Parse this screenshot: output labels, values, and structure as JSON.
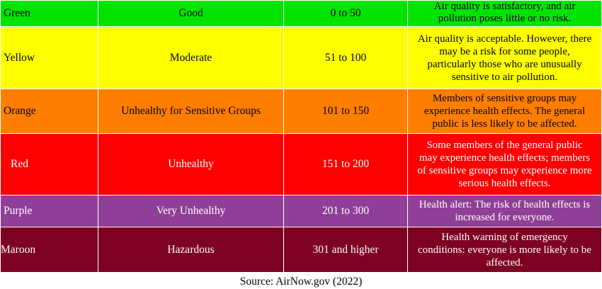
{
  "table": {
    "rows": [
      {
        "color": "Green",
        "level": "Good",
        "range": "0 to 50",
        "desc_lines": [
          "Air quality is satisfactory, and air",
          "pollution poses little or no risk."
        ]
      },
      {
        "color": "Yellow",
        "level": "Moderate",
        "range": "51 to 100",
        "desc_lines": [
          "Air quality is acceptable. However, there",
          "may be a risk for some people,",
          "particularly those who are unusually",
          "sensitive to air pollution."
        ]
      },
      {
        "color": "Orange",
        "level": "Unhealthy for Sensitive Groups",
        "range": "101 to 150",
        "desc_lines": [
          "Members of sensitive groups may",
          "experience health effects. The general",
          "public is less likely to be affected."
        ]
      },
      {
        "color": "Red",
        "level": "Unhealthy",
        "range": "151 to 200",
        "desc_lines": [
          "Some members of the general public",
          "may experience health effects; members",
          "of sensitive groups may experience more",
          "serious health effects."
        ]
      },
      {
        "color": "Purple",
        "level": "Very Unhealthy",
        "range": "201 to 300",
        "desc_lines": [
          "Health alert: The risk of health effects is",
          "increased for everyone."
        ]
      },
      {
        "color": "Maroon",
        "level": "Hazardous",
        "range": "301 and higher",
        "desc_lines": [
          "Health warning of emergency",
          "conditions: everyone is more likely to be",
          "affected."
        ]
      }
    ],
    "row_colors": [
      "#00e400",
      "#ffff00",
      "#ff7e00",
      "#ff0000",
      "#8f3f97",
      "#7e0023"
    ]
  },
  "source": "Source: AirNow.gov (2022)"
}
